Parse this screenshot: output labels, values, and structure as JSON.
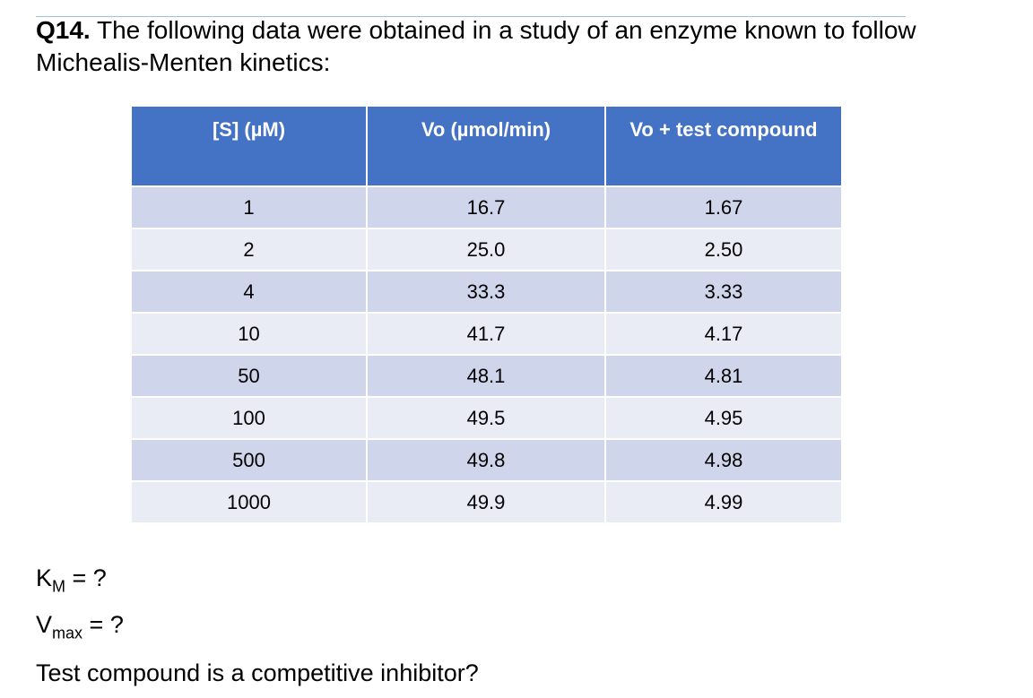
{
  "question": {
    "number": "Q14.",
    "text": "The following data were obtained in a study of an enzyme known to follow Michealis-Menten kinetics:"
  },
  "table": {
    "headers": [
      "[S] (µM)",
      "Vo (µmol/min)",
      "Vo + test compound"
    ],
    "rows": [
      [
        "1",
        "16.7",
        "1.67"
      ],
      [
        "2",
        "25.0",
        "2.50"
      ],
      [
        "4",
        "33.3",
        "3.33"
      ],
      [
        "10",
        "41.7",
        "4.17"
      ],
      [
        "50",
        "48.1",
        "4.81"
      ],
      [
        "100",
        "49.5",
        "4.95"
      ],
      [
        "500",
        "49.8",
        "4.98"
      ],
      [
        "1000",
        "49.9",
        "4.99"
      ]
    ]
  },
  "questions": {
    "km": {
      "symbol": "K",
      "subscript": "M",
      "text": "= ?"
    },
    "vmax": {
      "symbol": "V",
      "subscript": "max",
      "text": "= ?"
    },
    "inhibitor": "Test compound is a competitive inhibitor?"
  }
}
